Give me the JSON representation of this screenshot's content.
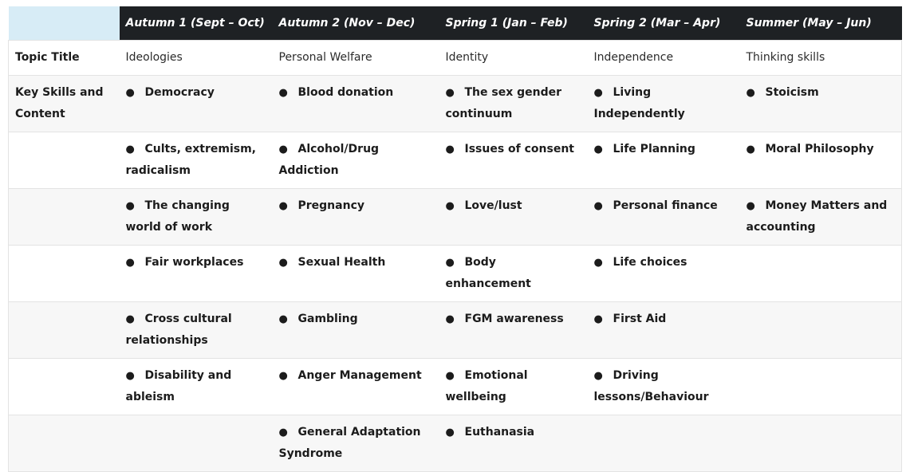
{
  "table": {
    "headers": [
      "",
      "Autumn 1 (Sept – Oct)",
      "Autumn 2 (Nov – Dec)",
      "Spring 1 (Jan – Feb)",
      "Spring 2 (Mar – Apr)",
      "Summer (May – Jun)"
    ],
    "topic_row": {
      "label": "Topic Title",
      "cells": [
        "Ideologies",
        "Personal Welfare",
        "Identity",
        "Independence",
        "Thinking skills"
      ]
    },
    "skills_label": "Key Skills and Content",
    "bullet": "●",
    "skills_rows": [
      [
        "Democracy",
        "Blood donation",
        "The sex gender continuum",
        "Living Independently",
        "Stoicism"
      ],
      [
        "Cults, extremism, radicalism",
        "Alcohol/Drug Addiction",
        "Issues of consent",
        "Life Planning",
        "Moral Philosophy"
      ],
      [
        "The changing world of work",
        "Pregnancy",
        "Love/lust",
        "Personal finance",
        "Money Matters and accounting"
      ],
      [
        "Fair workplaces",
        "Sexual Health",
        "Body enhancement",
        "Life choices",
        ""
      ],
      [
        "Cross cultural relationships",
        "Gambling",
        "FGM awareness",
        "First Aid",
        ""
      ],
      [
        "Disability and ableism",
        "Anger Management",
        "Emotional wellbeing",
        "Driving lessons/Behaviour",
        ""
      ],
      [
        "",
        "General Adaptation Syndrome",
        "Euthanasia",
        "",
        ""
      ]
    ]
  }
}
